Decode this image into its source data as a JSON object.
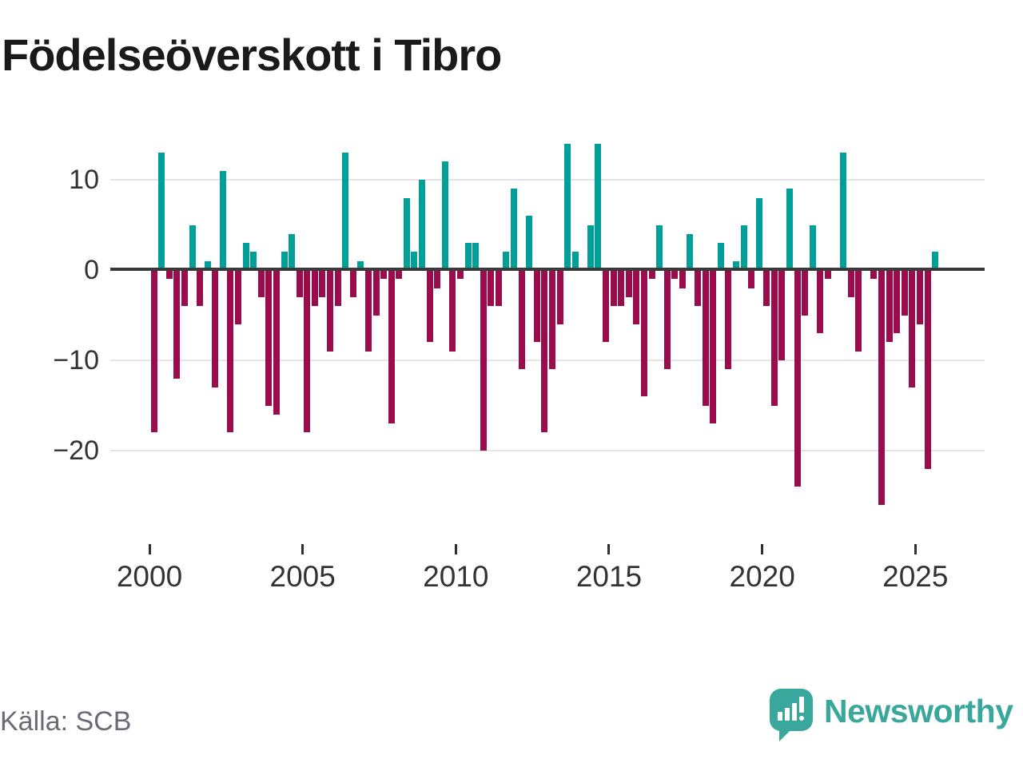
{
  "page": {
    "title": "Födelseöverskott i Tibro",
    "source": "Källa: SCB",
    "brand": "Newsworthy"
  },
  "colors": {
    "positive": "#00a099",
    "negative": "#9b0c4c",
    "grid": "#e4e4e4",
    "zero_axis": "#3a3a3a",
    "axis_text": "#333333",
    "source_text": "#6b6b75",
    "brand_teal": "#3aa79d"
  },
  "chart_data": {
    "type": "bar",
    "title": "Födelseöverskott i Tibro",
    "x_unit": "quarter",
    "grid": "horizontal",
    "legend": "none",
    "ylim": [
      -27,
      15
    ],
    "y_ticks": [
      {
        "value": 10,
        "label": "10"
      },
      {
        "value": 0,
        "label": "0"
      },
      {
        "value": -10,
        "label": "−10"
      },
      {
        "value": -20,
        "label": "−20"
      }
    ],
    "x_ticks": [
      2000,
      2005,
      2010,
      2015,
      2020,
      2025
    ],
    "series": [
      {
        "year": 2000,
        "values": [
          -18,
          13,
          -1,
          -12
        ]
      },
      {
        "year": 2001,
        "values": [
          -4,
          5,
          -4,
          1
        ]
      },
      {
        "year": 2002,
        "values": [
          -13,
          11,
          -18,
          -6
        ]
      },
      {
        "year": 2003,
        "values": [
          3,
          2,
          -3,
          -15
        ]
      },
      {
        "year": 2004,
        "values": [
          -16,
          2,
          4,
          -3
        ]
      },
      {
        "year": 2005,
        "values": [
          -18,
          -4,
          -3,
          -9
        ]
      },
      {
        "year": 2006,
        "values": [
          -4,
          13,
          -3,
          1
        ]
      },
      {
        "year": 2007,
        "values": [
          -9,
          -5,
          -1,
          -17
        ]
      },
      {
        "year": 2008,
        "values": [
          -1,
          8,
          2,
          10
        ]
      },
      {
        "year": 2009,
        "values": [
          -8,
          -2,
          12,
          -9
        ]
      },
      {
        "year": 2010,
        "values": [
          -1,
          3,
          3,
          -20
        ]
      },
      {
        "year": 2011,
        "values": [
          -4,
          -4,
          2,
          9
        ]
      },
      {
        "year": 2012,
        "values": [
          -11,
          6,
          -8,
          -18
        ]
      },
      {
        "year": 2013,
        "values": [
          -11,
          -6,
          14,
          2
        ]
      },
      {
        "year": 2014,
        "values": [
          0,
          5,
          14,
          -8
        ]
      },
      {
        "year": 2015,
        "values": [
          -4,
          -4,
          -3,
          -6
        ]
      },
      {
        "year": 2016,
        "values": [
          -14,
          -1,
          5,
          -11
        ]
      },
      {
        "year": 2017,
        "values": [
          -1,
          -2,
          4,
          -4
        ]
      },
      {
        "year": 2018,
        "values": [
          -15,
          -17,
          3,
          -11
        ]
      },
      {
        "year": 2019,
        "values": [
          1,
          5,
          -2,
          8
        ]
      },
      {
        "year": 2020,
        "values": [
          -4,
          -15,
          -10,
          9
        ]
      },
      {
        "year": 2021,
        "values": [
          -24,
          -5,
          5,
          -7
        ]
      },
      {
        "year": 2022,
        "values": [
          -1,
          0,
          13,
          -3
        ]
      },
      {
        "year": 2023,
        "values": [
          -9,
          0,
          -1,
          -26
        ]
      },
      {
        "year": 2024,
        "values": [
          -8,
          -7,
          -5,
          -13
        ]
      },
      {
        "year": 2025,
        "values": [
          -6,
          -22,
          2
        ]
      }
    ]
  }
}
